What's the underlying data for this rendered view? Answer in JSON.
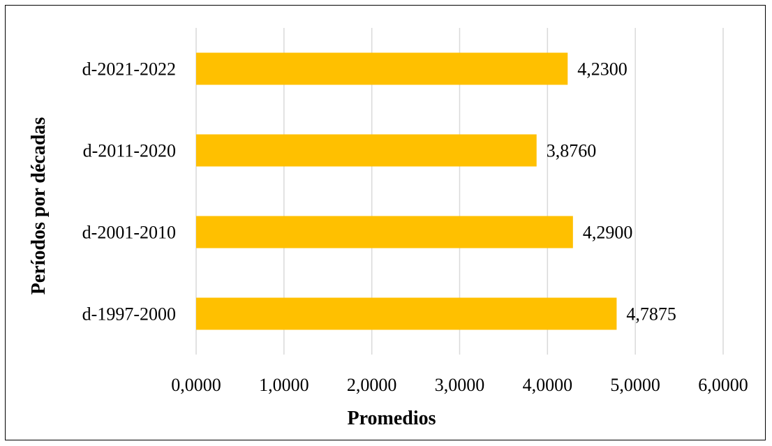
{
  "chart_data": {
    "type": "bar",
    "orientation": "horizontal",
    "categories": [
      "d-1997-2000",
      "d-2001-2010",
      "d-2011-2020",
      "d-2021-2022"
    ],
    "values": [
      4.7875,
      4.29,
      3.876,
      4.23
    ],
    "data_labels": [
      "4,7875",
      "4,2900",
      "3,8760",
      "4,2300"
    ],
    "xlabel": "Promedios",
    "ylabel": "Períodos por décadas",
    "xlim": [
      0,
      6
    ],
    "x_ticks": [
      0,
      1,
      2,
      3,
      4,
      5,
      6
    ],
    "x_tick_labels": [
      "0,0000",
      "1,0000",
      "2,0000",
      "3,0000",
      "4,0000",
      "5,0000",
      "6,0000"
    ],
    "grid": "vertical",
    "legend": "none",
    "bar_color": "#FFC000",
    "grid_color": "#D9D9D9"
  }
}
